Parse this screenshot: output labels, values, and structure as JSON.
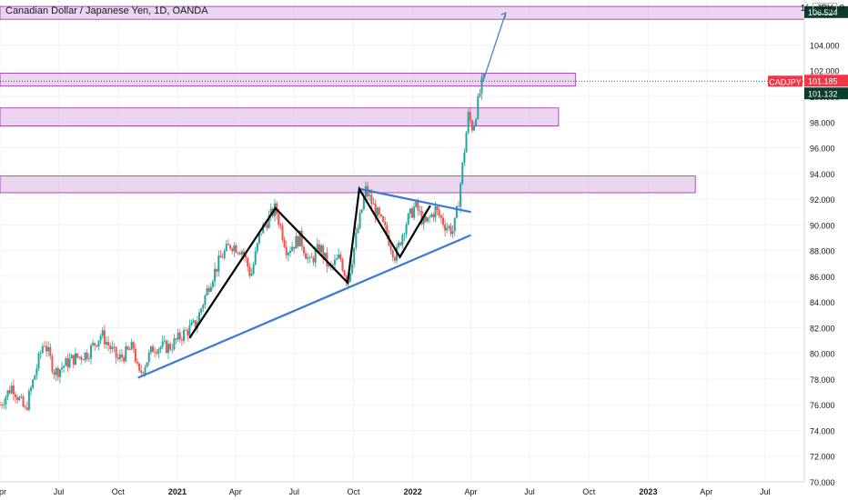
{
  "header": {
    "title": "Canadian Dollar / Japanese Yen, 1D, OANDA",
    "currency": "JPY",
    "zero": "0",
    "one_prefix": "1("
  },
  "colors": {
    "up": "#26a69a",
    "down": "#ef5350",
    "zone_fill": "#e1bee7",
    "zone_border": "#9c27b0",
    "trendline": "#3a78d8",
    "pattern": "#000000",
    "target_arrow": "#3a78d8",
    "price_tag": "#f23645",
    "level_tag": "#0b3d2e"
  },
  "chart_data": {
    "type": "candlestick",
    "symbol": "CADJPY",
    "y_range": [
      70,
      107.5
    ],
    "y_ticks": [
      "70.000",
      "72.000",
      "74.000",
      "76.000",
      "78.000",
      "80.000",
      "82.000",
      "84.000",
      "86.000",
      "88.000",
      "90.000",
      "92.000",
      "94.000",
      "96.000",
      "98.000",
      "100.000",
      "102.000",
      "104.000"
    ],
    "x_ticks": [
      "Apr",
      "Jul",
      "Oct",
      "2021",
      "Apr",
      "Jul",
      "Oct",
      "2022",
      "Apr",
      "Jul",
      "Oct",
      "2023",
      "Apr",
      "Jul"
    ],
    "x_range": [
      "2020-04-01",
      "2023-08-31"
    ],
    "price_path": [
      [
        "2020-04-01",
        76.0
      ],
      [
        "2020-04-20",
        77.5
      ],
      [
        "2020-05-10",
        75.5
      ],
      [
        "2020-06-08",
        81.0
      ],
      [
        "2020-06-25",
        78.5
      ],
      [
        "2020-07-20",
        79.5
      ],
      [
        "2020-08-15",
        80.0
      ],
      [
        "2020-09-05",
        81.5
      ],
      [
        "2020-10-01",
        79.5
      ],
      [
        "2020-10-25",
        80.5
      ],
      [
        "2020-11-02",
        78.2
      ],
      [
        "2020-11-25",
        80.5
      ],
      [
        "2020-12-20",
        80.5
      ],
      [
        "2021-01-10",
        81.5
      ],
      [
        "2021-01-30",
        82.3
      ],
      [
        "2021-02-20",
        85.5
      ],
      [
        "2021-03-10",
        87.5
      ],
      [
        "2021-03-25",
        88.5
      ],
      [
        "2021-04-12",
        88.0
      ],
      [
        "2021-04-25",
        86.0
      ],
      [
        "2021-05-10",
        89.5
      ],
      [
        "2021-06-02",
        91.3
      ],
      [
        "2021-06-20",
        88.0
      ],
      [
        "2021-07-10",
        89.0
      ],
      [
        "2021-07-25",
        87.0
      ],
      [
        "2021-08-10",
        88.3
      ],
      [
        "2021-08-25",
        86.5
      ],
      [
        "2021-09-10",
        87.5
      ],
      [
        "2021-09-22",
        85.5
      ],
      [
        "2021-10-05",
        89.0
      ],
      [
        "2021-10-20",
        92.7
      ],
      [
        "2021-11-05",
        91.0
      ],
      [
        "2021-11-20",
        89.5
      ],
      [
        "2021-12-05",
        87.5
      ],
      [
        "2021-12-20",
        90.0
      ],
      [
        "2022-01-05",
        91.5
      ],
      [
        "2022-01-20",
        90.0
      ],
      [
        "2022-02-05",
        91.2
      ],
      [
        "2022-02-20",
        90.0
      ],
      [
        "2022-03-05",
        89.5
      ],
      [
        "2022-03-12",
        91.5
      ],
      [
        "2022-03-20",
        95.0
      ],
      [
        "2022-03-28",
        98.5
      ],
      [
        "2022-04-04",
        97.5
      ],
      [
        "2022-04-12",
        99.5
      ],
      [
        "2022-04-20",
        101.5
      ],
      [
        "2022-04-22",
        101.185
      ]
    ],
    "levels": [
      {
        "label": "106.524",
        "value": 106.524
      },
      {
        "label": "101.132",
        "value": 101.132
      }
    ],
    "current": {
      "symbol": "CADJPY",
      "label": "101.185",
      "value": 101.185
    },
    "zones": [
      {
        "y1": 107.0,
        "y2": 106.0,
        "end": "2023-08-31"
      },
      {
        "y1": 101.8,
        "y2": 100.8,
        "end": "2022-09-10"
      },
      {
        "y1": 99.1,
        "y2": 97.7,
        "end": "2022-08-15"
      },
      {
        "y1": 93.8,
        "y2": 92.5,
        "end": "2023-03-15"
      }
    ],
    "trendlines": [
      {
        "from": [
          "2020-11-01",
          78.1
        ],
        "to": [
          "2022-04-01",
          89.2
        ]
      },
      {
        "from": [
          "2021-10-10",
          92.8
        ],
        "to": [
          "2022-04-01",
          91.0
        ]
      }
    ],
    "zigzag": [
      [
        "2021-01-20",
        81.2
      ],
      [
        "2021-06-02",
        91.3
      ],
      [
        "2021-09-22",
        85.5
      ],
      [
        "2021-10-10",
        92.8
      ],
      [
        "2021-12-12",
        87.5
      ],
      [
        "2022-01-28",
        91.5
      ]
    ],
    "target_arrow": {
      "from": [
        "2022-04-20",
        101.2
      ],
      "to": [
        "2022-05-25",
        106.5
      ]
    }
  }
}
